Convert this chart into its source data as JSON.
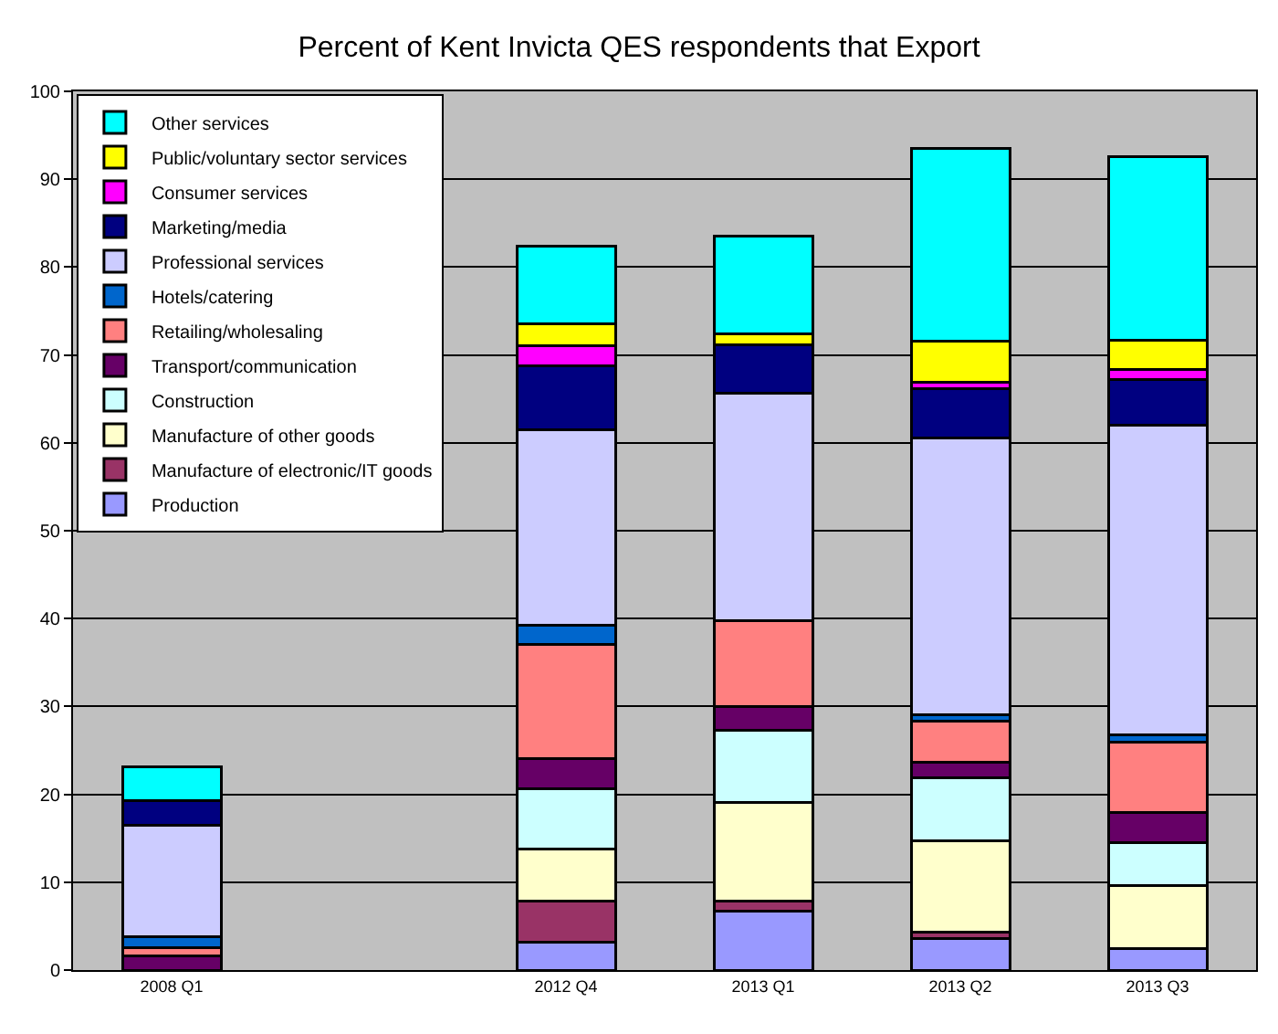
{
  "chart_data": {
    "type": "bar",
    "title": "Percent of Kent Invicta QES respondents that Export",
    "stacked": true,
    "categories": [
      "2008 Q1",
      null,
      "2012 Q4",
      "2013 Q1",
      "2013 Q2",
      "2013 Q3"
    ],
    "series": [
      {
        "name": "Production",
        "color": "#9999ff",
        "values": [
          null,
          null,
          3.2,
          6.7,
          3.6,
          2.4
        ]
      },
      {
        "name": "Manufacture of electronic/IT goods",
        "color": "#993366",
        "values": [
          null,
          null,
          4.7,
          1.2,
          0.7,
          null
        ]
      },
      {
        "name": "Manufacture of other goods",
        "color": "#ffffcc",
        "values": [
          null,
          null,
          5.9,
          11.2,
          10.4,
          7.2
        ]
      },
      {
        "name": "Construction",
        "color": "#ccffff",
        "values": [
          null,
          null,
          6.8,
          8.2,
          7.2,
          4.9
        ]
      },
      {
        "name": "Transport/communication",
        "color": "#660066",
        "values": [
          1.6,
          null,
          3.5,
          2.7,
          1.7,
          3.4
        ]
      },
      {
        "name": "Retailing/wholesaling",
        "color": "#ff8080",
        "values": [
          0.9,
          null,
          13.0,
          9.8,
          4.7,
          8.0
        ]
      },
      {
        "name": "Hotels/catering",
        "color": "#0066cc",
        "values": [
          1.3,
          null,
          2.1,
          null,
          0.8,
          0.9
        ]
      },
      {
        "name": "Professional services",
        "color": "#ccccff",
        "values": [
          12.7,
          null,
          22.3,
          25.8,
          31.5,
          35.2
        ]
      },
      {
        "name": "Marketing/media",
        "color": "#000080",
        "values": [
          2.8,
          null,
          7.3,
          5.6,
          5.6,
          5.2
        ]
      },
      {
        "name": "Consumer services",
        "color": "#ff00ff",
        "values": [
          null,
          null,
          2.2,
          null,
          0.7,
          1.2
        ]
      },
      {
        "name": "Public/voluntary sector services",
        "color": "#ffff00",
        "values": [
          null,
          null,
          2.5,
          1.2,
          4.7,
          3.3
        ]
      },
      {
        "name": "Other services",
        "color": "#00ffff",
        "values": [
          3.8,
          null,
          8.9,
          11.1,
          21.9,
          20.9
        ]
      }
    ],
    "ylim": [
      0,
      100
    ],
    "yticks": [
      0,
      10,
      20,
      30,
      40,
      50,
      60,
      70,
      80,
      90,
      100
    ],
    "grid": "y",
    "legend": "top left"
  }
}
